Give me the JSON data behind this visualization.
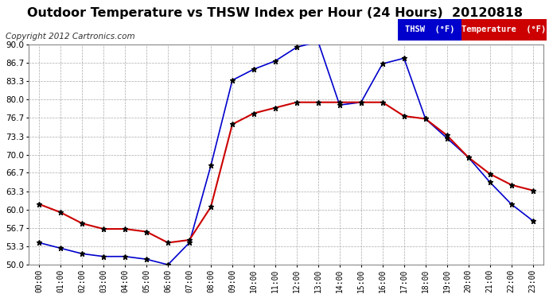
{
  "title": "Outdoor Temperature vs THSW Index per Hour (24 Hours)  20120818",
  "copyright": "Copyright 2012 Cartronics.com",
  "hours": [
    "00:00",
    "01:00",
    "02:00",
    "03:00",
    "04:00",
    "05:00",
    "06:00",
    "07:00",
    "08:00",
    "09:00",
    "10:00",
    "11:00",
    "12:00",
    "13:00",
    "14:00",
    "15:00",
    "16:00",
    "17:00",
    "18:00",
    "19:00",
    "20:00",
    "21:00",
    "22:00",
    "23:00"
  ],
  "thsw": [
    54.0,
    53.0,
    52.0,
    51.5,
    51.5,
    51.0,
    50.0,
    54.0,
    68.0,
    83.5,
    85.5,
    87.0,
    89.5,
    90.5,
    79.0,
    79.5,
    86.5,
    87.5,
    76.5,
    73.0,
    69.5,
    65.0,
    61.0,
    58.0
  ],
  "temperature": [
    61.0,
    59.5,
    57.5,
    56.5,
    56.5,
    56.0,
    54.0,
    54.5,
    60.5,
    75.5,
    77.5,
    78.5,
    79.5,
    79.5,
    79.5,
    79.5,
    79.5,
    77.0,
    76.5,
    73.5,
    69.5,
    66.5,
    64.5,
    63.5
  ],
  "thsw_color": "#0000cc",
  "temp_color": "#cc0000",
  "ylim": [
    50.0,
    90.0
  ],
  "yticks": [
    50.0,
    53.3,
    56.7,
    60.0,
    63.3,
    66.7,
    70.0,
    73.3,
    76.7,
    80.0,
    83.3,
    86.7,
    90.0
  ],
  "grid_color": "#aaaaaa",
  "bg_color": "#ffffff",
  "plot_bg_color": "#ffffff",
  "title_fontsize": 11.5,
  "copyright_fontsize": 7.5,
  "legend_thsw_label": "THSW  (°F)",
  "legend_temp_label": "Temperature  (°F)"
}
